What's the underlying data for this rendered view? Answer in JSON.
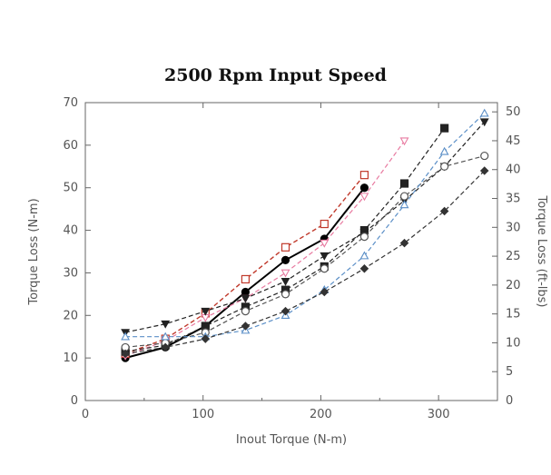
{
  "chart_data": {
    "type": "line",
    "title": "2500 Rpm Input Speed",
    "xlabel": "Inout Torque (N-m)",
    "ylabel": "Torque Loss (N-m)",
    "ylabel_right": "Torque Loss (ft-lbs)",
    "xlim": [
      0,
      350
    ],
    "ylim": [
      0,
      70
    ],
    "ylim_right": [
      0,
      51.6
    ],
    "x_ticks": [
      "0",
      "100",
      "200",
      "300"
    ],
    "y_ticks": [
      "0",
      "10",
      "20",
      "30",
      "40",
      "50",
      "60",
      "70"
    ],
    "y_ticks_right": [
      "0",
      "5",
      "10",
      "15",
      "20",
      "25",
      "30",
      "35",
      "40",
      "45",
      "50"
    ],
    "grid": false,
    "series": [
      {
        "color": "#000000",
        "marker": "filled-circle",
        "dash": "solid",
        "width": 2,
        "x": [
          34,
          68,
          102,
          136,
          170,
          203,
          237
        ],
        "y": [
          10,
          12.5,
          17.5,
          25.5,
          33,
          38,
          50
        ]
      },
      {
        "color": "#c0392b",
        "marker": "square",
        "dash": "dashed",
        "width": 1.4,
        "x": [
          34,
          68,
          102,
          136,
          170,
          203,
          237
        ],
        "y": [
          11,
          14.5,
          20.5,
          28.5,
          36,
          41.5,
          53
        ]
      },
      {
        "color": "#e87aa0",
        "marker": "triangle-down",
        "dash": "dashed",
        "width": 1.2,
        "x": [
          34,
          68,
          102,
          136,
          170,
          203,
          237,
          271
        ],
        "y": [
          10.5,
          14,
          19.5,
          24,
          30,
          37,
          48,
          61
        ]
      },
      {
        "color": "#222222",
        "marker": "filled-square",
        "dash": "dashed",
        "width": 1.2,
        "x": [
          34,
          68,
          102,
          136,
          170,
          203,
          237,
          271,
          305
        ],
        "y": [
          11.5,
          13,
          17.5,
          22,
          26,
          31.5,
          40,
          51,
          64
        ]
      },
      {
        "color": "#222222",
        "marker": "filled-triangle-down",
        "dash": "dashed",
        "width": 1.2,
        "x": [
          34,
          68,
          102,
          136,
          170,
          203,
          237,
          271,
          305,
          339
        ],
        "y": [
          16,
          18,
          21,
          24,
          28,
          34,
          39.5,
          47,
          55,
          65.5
        ]
      },
      {
        "color": "#555555",
        "marker": "open-circle",
        "dash": "dashed",
        "width": 1.2,
        "x": [
          34,
          68,
          102,
          136,
          170,
          203,
          237,
          271,
          305,
          339
        ],
        "y": [
          12.5,
          13.5,
          16,
          21,
          25,
          31,
          38.5,
          48,
          55,
          57.5
        ]
      },
      {
        "color": "#5b8fc7",
        "marker": "triangle",
        "dash": "dashed",
        "width": 1.2,
        "x": [
          34,
          68,
          102,
          136,
          170,
          203,
          237,
          271,
          305,
          339
        ],
        "y": [
          15,
          15,
          15,
          16.5,
          20,
          26,
          34,
          46,
          58.5,
          67.5
        ]
      },
      {
        "color": "#333333",
        "marker": "filled-diamond",
        "dash": "dashed",
        "width": 1.2,
        "x": [
          34,
          68,
          102,
          136,
          170,
          203,
          237,
          271,
          305,
          339
        ],
        "y": [
          11,
          12.5,
          14.5,
          17.5,
          21,
          25.5,
          31,
          37,
          44.5,
          54
        ]
      }
    ]
  }
}
